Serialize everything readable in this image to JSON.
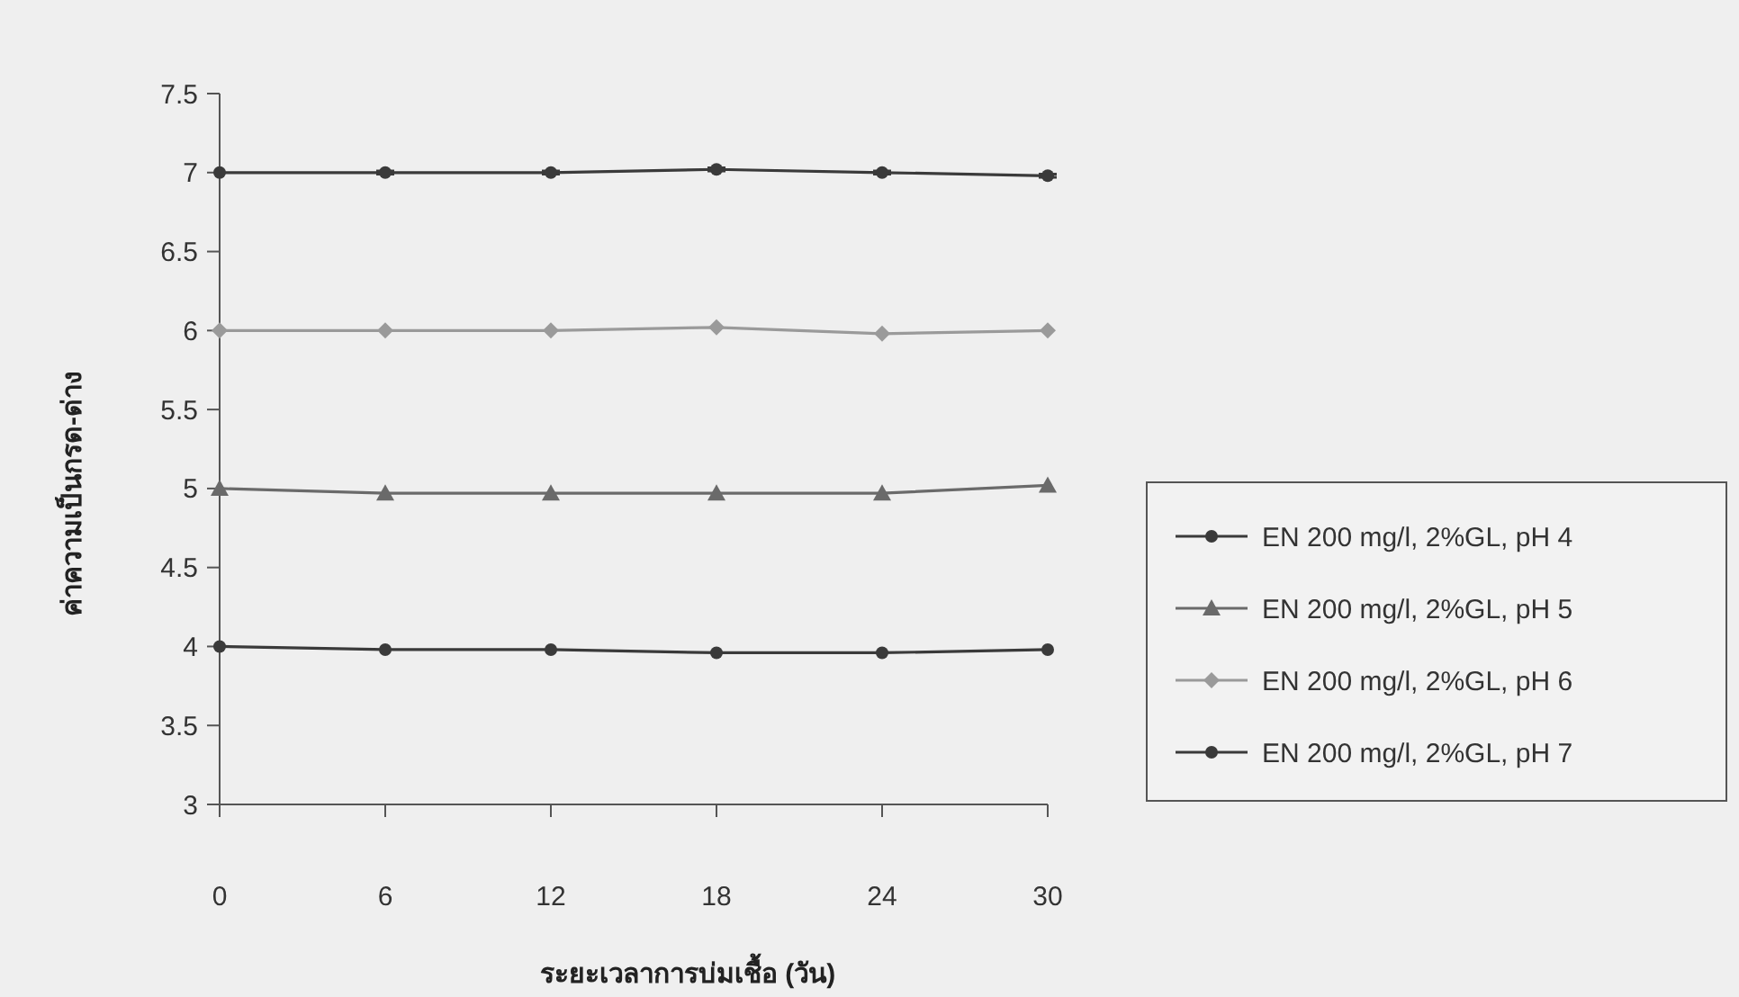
{
  "chart_data": {
    "type": "line",
    "xlabel": "ระยะเวลาการบ่มเชื้อ (วัน)",
    "ylabel": "ค่าความเป็นกรด-ด่าง",
    "x": [
      0,
      6,
      12,
      18,
      24,
      30
    ],
    "xlim": [
      0,
      30
    ],
    "xticks": [
      0,
      6,
      12,
      18,
      24,
      30
    ],
    "ylim": [
      3,
      7.5
    ],
    "yticks": [
      3,
      3.5,
      4,
      4.5,
      5,
      5.5,
      6,
      6.5,
      7,
      7.5
    ],
    "legend": "right",
    "grid": false,
    "series": [
      {
        "name": "EN 200 mg/l, 2%GL, pH 4",
        "color": "#3a3a3a",
        "marker": "circle",
        "values": [
          4.0,
          3.98,
          3.98,
          3.96,
          3.96,
          3.98
        ]
      },
      {
        "name": "EN 200 mg/l, 2%GL, pH 5",
        "color": "#6a6a6a",
        "marker": "triangle",
        "values": [
          5.0,
          4.97,
          4.97,
          4.97,
          4.97,
          5.02
        ]
      },
      {
        "name": "EN 200 mg/l, 2%GL, pH 6",
        "color": "#9a9a9a",
        "marker": "diamond",
        "values": [
          6.0,
          6.0,
          6.0,
          6.02,
          5.98,
          6.0
        ]
      },
      {
        "name": "EN 200 mg/l, 2%GL, pH 7",
        "color": "#3a3a3a",
        "marker": "circle",
        "values": [
          7.0,
          7.0,
          7.0,
          7.02,
          7.0,
          6.98
        ],
        "errors": [
          null,
          0.01,
          0.01,
          0.01,
          0.01,
          0.01
        ]
      }
    ]
  }
}
